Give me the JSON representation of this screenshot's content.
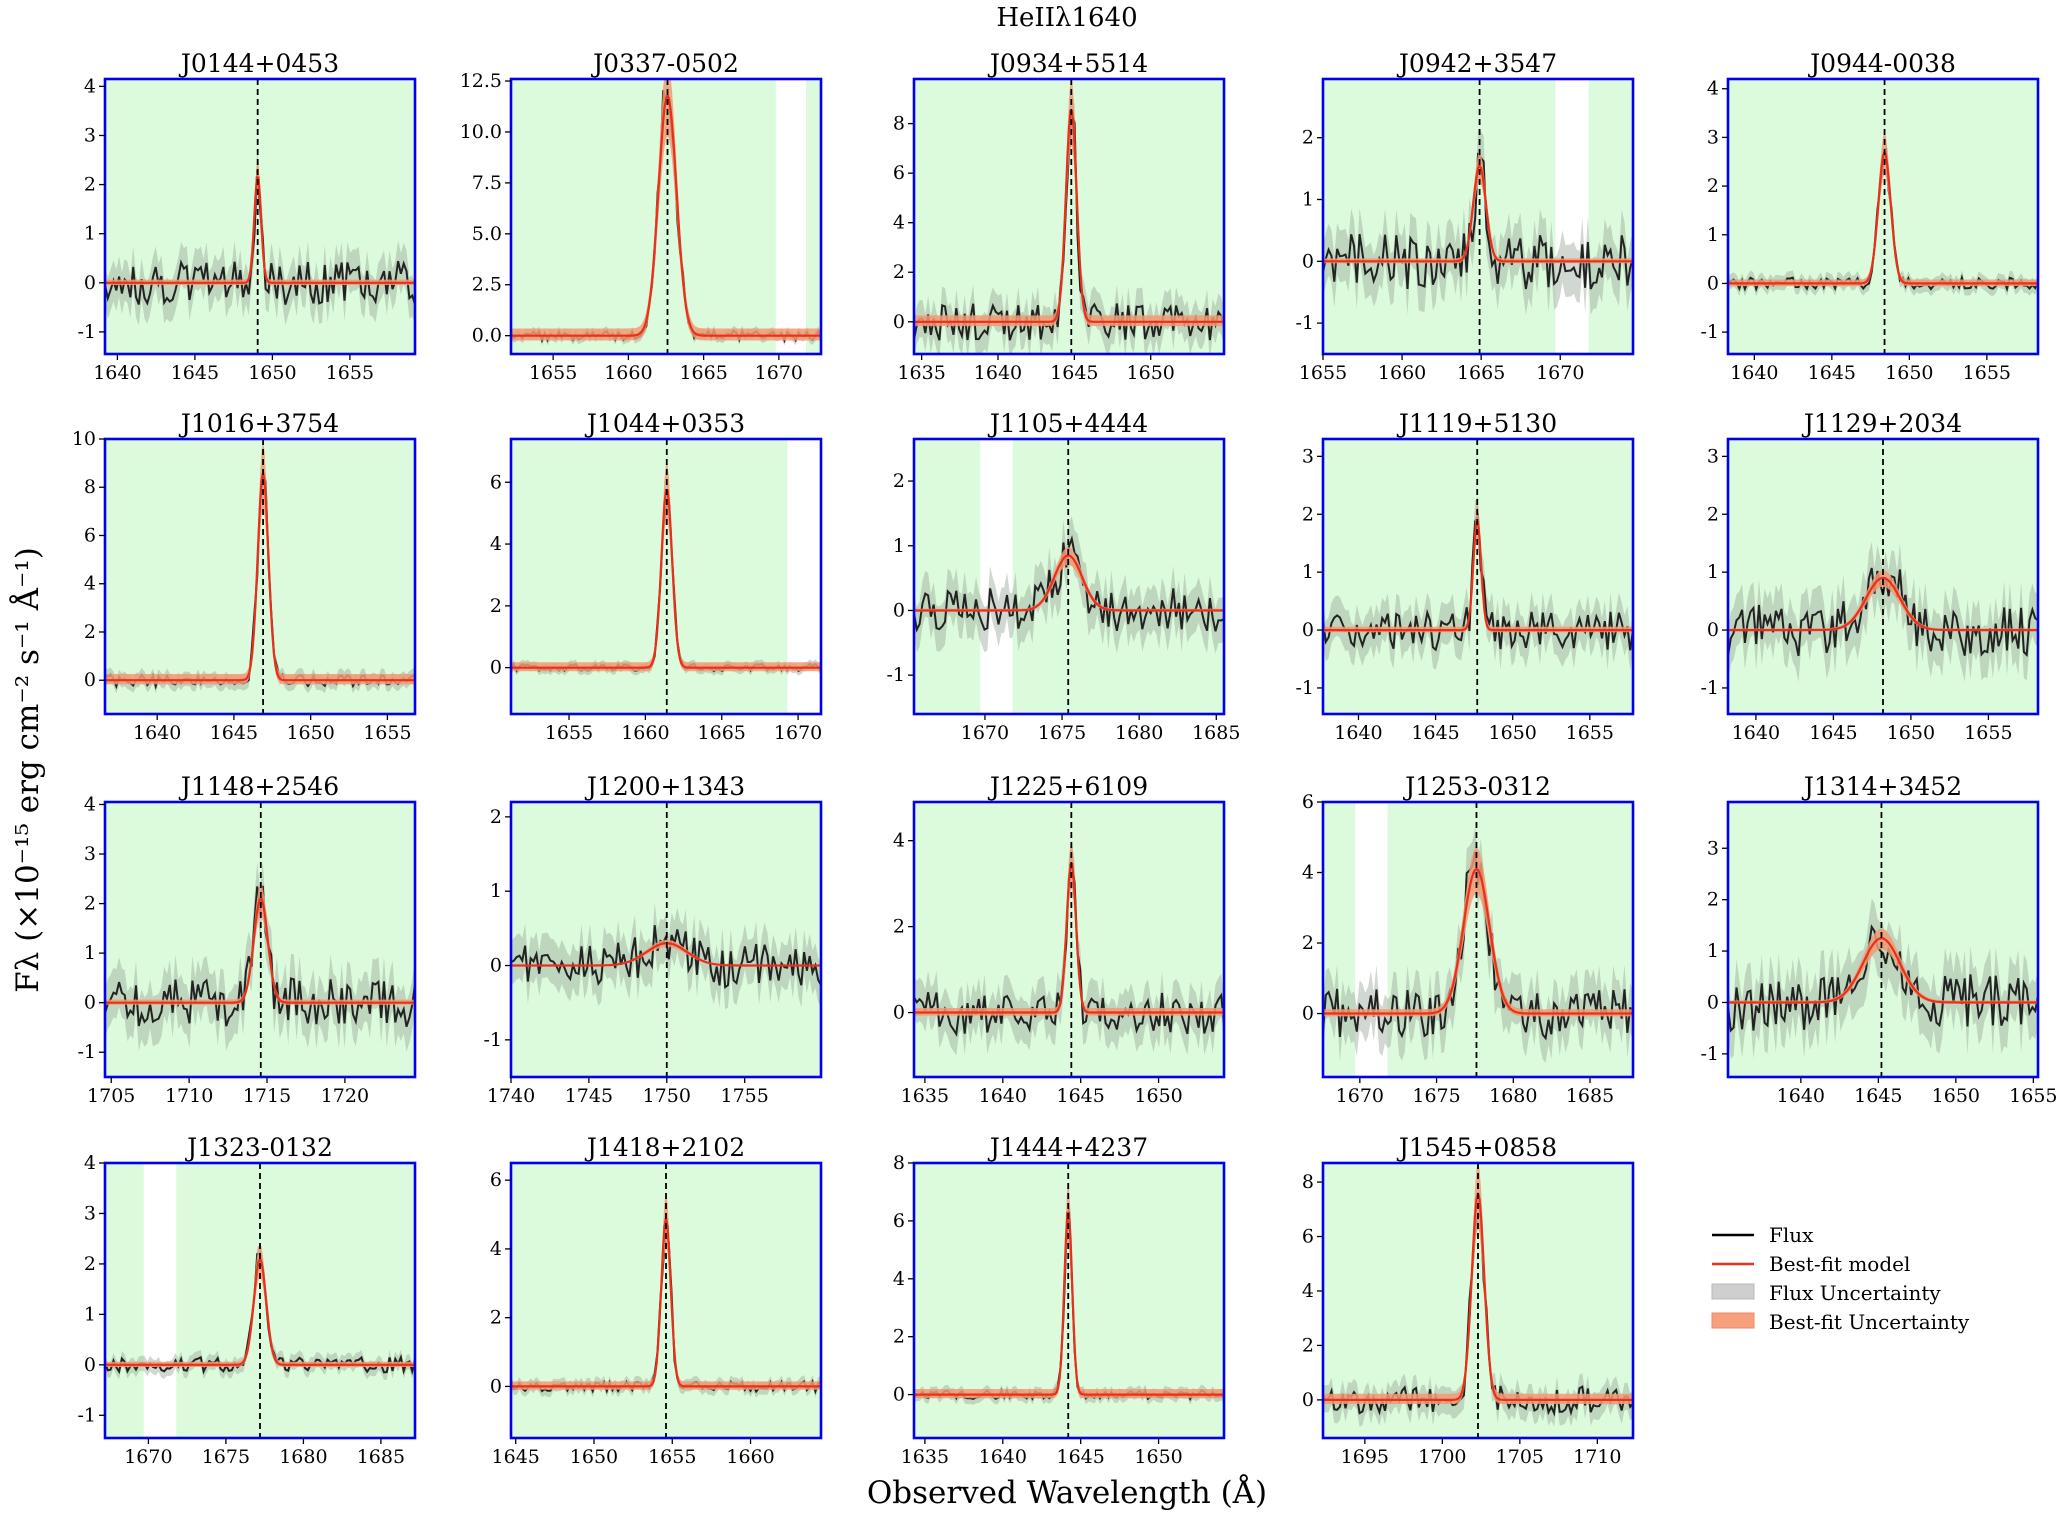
{
  "chart_data": {
    "type": "line",
    "title": "HeIIλ1640",
    "xlabel": "Observed Wavelength (Å)",
    "ylabel": "Fλ (×10⁻¹⁵ erg cm⁻² s⁻¹ Å⁻¹)",
    "legend": {
      "placement": "bottom-right",
      "entries": [
        {
          "label": "Flux",
          "kind": "line",
          "color": "#000000"
        },
        {
          "label": "Best-fit model",
          "kind": "line",
          "color": "#e8301c"
        },
        {
          "label": "Flux Uncertainty",
          "kind": "patch",
          "color": "#c8c8c8"
        },
        {
          "label": "Best-fit Uncertainty",
          "kind": "patch",
          "color": "#f6a07e"
        }
      ]
    },
    "colors": {
      "frame": "#0000ee",
      "region": "#dcfbdc",
      "flux": "#222222",
      "model": "#e8301c",
      "flux_err": "#9aa79a",
      "model_err": "#f39a73"
    },
    "panels": [
      {
        "name": "J0144+0453",
        "xlim": [
          1639.2,
          1659.2
        ],
        "ylim": [
          -1.45,
          4.15
        ],
        "xticks": [
          1640,
          1645,
          1650,
          1655
        ],
        "yticks": [
          -1,
          0,
          1,
          2,
          3,
          4
        ],
        "line_center": 1649.05,
        "amp": 2.2,
        "sigma": 0.22,
        "noise": 0.45,
        "err": 0.42,
        "excluded": []
      },
      {
        "name": "J0337-0502",
        "xlim": [
          1652.2,
          1672.8
        ],
        "ylim": [
          -0.9,
          12.6
        ],
        "xticks": [
          1655,
          1660,
          1665,
          1670
        ],
        "yticks": [
          0.0,
          2.5,
          5.0,
          7.5,
          10.0,
          12.5
        ],
        "line_center": 1662.6,
        "amp": 11.8,
        "sigma": 0.6,
        "noise": 0.25,
        "err": 0.25,
        "excluded": [
          [
            1669.8,
            1671.8
          ]
        ]
      },
      {
        "name": "J0934+5514",
        "xlim": [
          1634.5,
          1654.8
        ],
        "ylim": [
          -1.3,
          9.8
        ],
        "xticks": [
          1635,
          1640,
          1645,
          1650
        ],
        "yticks": [
          0,
          2,
          4,
          6,
          8
        ],
        "line_center": 1644.8,
        "amp": 8.6,
        "sigma": 0.35,
        "noise": 0.75,
        "err": 0.75,
        "excluded": []
      },
      {
        "name": "J0942+3547",
        "xlim": [
          1655.0,
          1674.6
        ],
        "ylim": [
          -1.5,
          2.95
        ],
        "xticks": [
          1655,
          1660,
          1665,
          1670
        ],
        "yticks": [
          -1,
          0,
          1,
          2
        ],
        "line_center": 1664.9,
        "amp": 1.55,
        "sigma": 0.4,
        "noise": 0.45,
        "err": 0.42,
        "excluded": [
          [
            1669.7,
            1671.8
          ]
        ]
      },
      {
        "name": "J0944-0038",
        "xlim": [
          1638.3,
          1658.3
        ],
        "ylim": [
          -1.45,
          4.2
        ],
        "xticks": [
          1640,
          1645,
          1650,
          1655
        ],
        "yticks": [
          -1,
          0,
          1,
          2,
          3,
          4
        ],
        "line_center": 1648.4,
        "amp": 2.7,
        "sigma": 0.4,
        "noise": 0.12,
        "err": 0.15,
        "excluded": []
      },
      {
        "name": "J1016+3754",
        "xlim": [
          1636.6,
          1656.8
        ],
        "ylim": [
          -1.4,
          10.0
        ],
        "xticks": [
          1640,
          1645,
          1650,
          1655
        ],
        "yticks": [
          0,
          2,
          4,
          6,
          8,
          10
        ],
        "line_center": 1646.9,
        "amp": 8.6,
        "sigma": 0.35,
        "noise": 0.25,
        "err": 0.3,
        "excluded": []
      },
      {
        "name": "J1044+0353",
        "xlim": [
          1651.2,
          1671.5
        ],
        "ylim": [
          -1.5,
          7.4
        ],
        "xticks": [
          1655,
          1660,
          1665,
          1670
        ],
        "yticks": [
          0,
          2,
          4,
          6
        ],
        "line_center": 1661.4,
        "amp": 5.8,
        "sigma": 0.35,
        "noise": 0.12,
        "err": 0.15,
        "excluded": [
          [
            1669.3,
            1671.5
          ]
        ]
      },
      {
        "name": "J1105+4444",
        "xlim": [
          1665.4,
          1685.5
        ],
        "ylim": [
          -1.6,
          2.65
        ],
        "xticks": [
          1670,
          1675,
          1680,
          1685
        ],
        "yticks": [
          -1,
          0,
          1,
          2
        ],
        "line_center": 1675.4,
        "amp": 0.85,
        "sigma": 0.9,
        "noise": 0.35,
        "err": 0.35,
        "excluded": [
          [
            1669.7,
            1671.8
          ]
        ]
      },
      {
        "name": "J1119+5130",
        "xlim": [
          1637.7,
          1657.8
        ],
        "ylim": [
          -1.45,
          3.3
        ],
        "xticks": [
          1640,
          1645,
          1650,
          1655
        ],
        "yticks": [
          -1,
          0,
          1,
          2,
          3
        ],
        "line_center": 1647.7,
        "amp": 1.9,
        "sigma": 0.25,
        "noise": 0.35,
        "err": 0.35,
        "excluded": []
      },
      {
        "name": "J1129+2034",
        "xlim": [
          1638.2,
          1658.2
        ],
        "ylim": [
          -1.45,
          3.3
        ],
        "xticks": [
          1640,
          1645,
          1650,
          1655
        ],
        "yticks": [
          -1,
          0,
          1,
          2,
          3
        ],
        "line_center": 1648.2,
        "amp": 0.9,
        "sigma": 1.1,
        "noise": 0.45,
        "err": 0.45,
        "excluded": []
      },
      {
        "name": "J1148+2546",
        "xlim": [
          1704.6,
          1724.5
        ],
        "ylim": [
          -1.5,
          4.05
        ],
        "xticks": [
          1705,
          1710,
          1715,
          1720
        ],
        "yticks": [
          -1,
          0,
          1,
          2,
          3,
          4
        ],
        "line_center": 1714.6,
        "amp": 2.1,
        "sigma": 0.45,
        "noise": 0.5,
        "err": 0.5,
        "excluded": []
      },
      {
        "name": "J1200+1343",
        "xlim": [
          1740.0,
          1759.9
        ],
        "ylim": [
          -1.5,
          2.2
        ],
        "xticks": [
          1740,
          1745,
          1750,
          1755
        ],
        "yticks": [
          -1,
          0,
          1,
          2
        ],
        "line_center": 1750.0,
        "amp": 0.3,
        "sigma": 1.3,
        "noise": 0.3,
        "err": 0.3,
        "excluded": []
      },
      {
        "name": "J1225+6109",
        "xlim": [
          1634.3,
          1654.2
        ],
        "ylim": [
          -1.5,
          4.9
        ],
        "xticks": [
          1635,
          1640,
          1645,
          1650
        ],
        "yticks": [
          0,
          2,
          4
        ],
        "line_center": 1644.4,
        "amp": 3.5,
        "sigma": 0.3,
        "noise": 0.5,
        "err": 0.5,
        "excluded": []
      },
      {
        "name": "J1253-0312",
        "xlim": [
          1667.6,
          1687.8
        ],
        "ylim": [
          -1.8,
          6.0
        ],
        "xticks": [
          1670,
          1675,
          1680,
          1685
        ],
        "yticks": [
          0,
          2,
          4,
          6
        ],
        "line_center": 1677.6,
        "amp": 4.1,
        "sigma": 0.85,
        "noise": 0.7,
        "err": 0.7,
        "excluded": [
          [
            1669.7,
            1671.8
          ]
        ]
      },
      {
        "name": "J1314+3452",
        "xlim": [
          1635.3,
          1655.3
        ],
        "ylim": [
          -1.45,
          3.9
        ],
        "xticks": [
          1640,
          1645,
          1650,
          1655
        ],
        "yticks": [
          -1,
          0,
          1,
          2,
          3
        ],
        "line_center": 1645.2,
        "amp": 1.25,
        "sigma": 1.2,
        "noise": 0.55,
        "err": 0.55,
        "excluded": []
      },
      {
        "name": "J1323-0132",
        "xlim": [
          1667.2,
          1687.2
        ],
        "ylim": [
          -1.45,
          4.0
        ],
        "xticks": [
          1670,
          1675,
          1680,
          1685
        ],
        "yticks": [
          -1,
          0,
          1,
          2,
          3,
          4
        ],
        "line_center": 1677.2,
        "amp": 2.1,
        "sigma": 0.4,
        "noise": 0.15,
        "err": 0.15,
        "excluded": [
          [
            1669.7,
            1671.8
          ]
        ]
      },
      {
        "name": "J1418+2102",
        "xlim": [
          1644.7,
          1664.5
        ],
        "ylim": [
          -1.5,
          6.5
        ],
        "xticks": [
          1645,
          1650,
          1655,
          1660
        ],
        "yticks": [
          0,
          2,
          4,
          6
        ],
        "line_center": 1654.6,
        "amp": 4.9,
        "sigma": 0.3,
        "noise": 0.15,
        "err": 0.18,
        "excluded": []
      },
      {
        "name": "J1444+4237",
        "xlim": [
          1634.3,
          1654.2
        ],
        "ylim": [
          -1.5,
          8.0
        ],
        "xticks": [
          1635,
          1640,
          1645,
          1650
        ],
        "yticks": [
          0,
          2,
          4,
          6,
          8
        ],
        "line_center": 1644.2,
        "amp": 6.4,
        "sigma": 0.25,
        "noise": 0.15,
        "err": 0.2,
        "excluded": []
      },
      {
        "name": "J1545+0858",
        "xlim": [
          1692.3,
          1712.3
        ],
        "ylim": [
          -1.4,
          8.7
        ],
        "xticks": [
          1695,
          1700,
          1705,
          1710
        ],
        "yticks": [
          0,
          2,
          4,
          6,
          8
        ],
        "line_center": 1702.3,
        "amp": 7.6,
        "sigma": 0.4,
        "noise": 0.5,
        "err": 0.5,
        "excluded": []
      }
    ]
  }
}
